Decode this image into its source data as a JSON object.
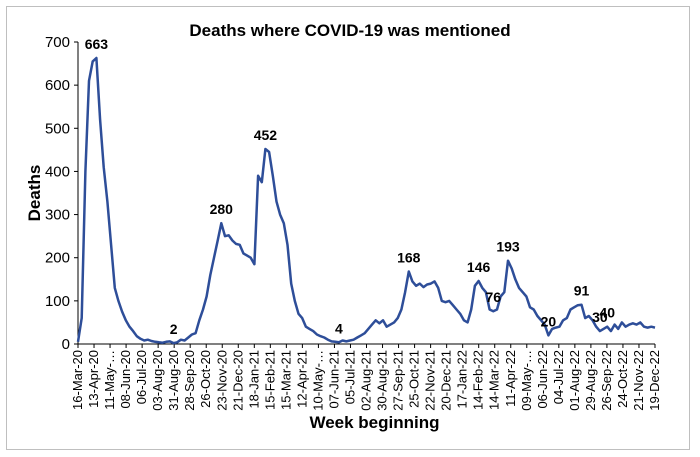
{
  "chart_data": {
    "type": "line",
    "title": "Deaths where COVID-19 was mentioned",
    "xlabel": "Week beginning",
    "ylabel": "Deaths",
    "ylim": [
      0,
      700
    ],
    "yticks": [
      0,
      100,
      200,
      300,
      400,
      500,
      600,
      700
    ],
    "grid": false,
    "line_color": "#2e4e99",
    "x_tick_labels": [
      "16-Mar-20",
      "13-Apr-20",
      "11-May-…",
      "08-Jun-20",
      "06-Jul-20",
      "03-Aug-20",
      "31-Aug-20",
      "28-Sep-20",
      "26-Oct-20",
      "23-Nov-20",
      "21-Dec-20",
      "18-Jan-21",
      "15-Feb-21",
      "15-Mar-21",
      "12-Apr-21",
      "10-May-…",
      "07-Jun-21",
      "05-Jul-21",
      "02-Aug-21",
      "30-Aug-21",
      "27-Sep-21",
      "25-Oct-21",
      "22-Nov-21",
      "20-Dec-21",
      "17-Jan-22",
      "14-Feb-22",
      "14-Mar-22",
      "11-Apr-22",
      "09-May-…",
      "06-Jun-22",
      "04-Jul-22",
      "01-Aug-22",
      "29-Aug-22",
      "26-Sep-22",
      "24-Oct-22",
      "21-Nov-22",
      "19-Dec-22"
    ],
    "series": [
      {
        "values": [
          5,
          60,
          400,
          610,
          655,
          663,
          520,
          410,
          330,
          230,
          130,
          100,
          75,
          55,
          40,
          30,
          18,
          12,
          8,
          10,
          7,
          5,
          4,
          3,
          5,
          6,
          2,
          4,
          10,
          8,
          15,
          22,
          25,
          55,
          80,
          110,
          160,
          200,
          240,
          280,
          250,
          252,
          240,
          232,
          230,
          210,
          205,
          200,
          185,
          390,
          375,
          452,
          445,
          390,
          330,
          300,
          280,
          230,
          140,
          100,
          70,
          60,
          40,
          35,
          30,
          22,
          18,
          15,
          10,
          6,
          5,
          4,
          8,
          6,
          8,
          10,
          15,
          20,
          25,
          35,
          45,
          55,
          48,
          55,
          40,
          45,
          50,
          60,
          80,
          120,
          168,
          145,
          135,
          140,
          132,
          138,
          140,
          145,
          130,
          100,
          97,
          100,
          90,
          80,
          70,
          55,
          50,
          80,
          135,
          146,
          130,
          120,
          80,
          76,
          80,
          110,
          120,
          193,
          175,
          150,
          130,
          120,
          110,
          85,
          80,
          65,
          55,
          45,
          20,
          35,
          38,
          40,
          55,
          60,
          80,
          85,
          90,
          91,
          60,
          65,
          55,
          40,
          30,
          35,
          40,
          30,
          45,
          35,
          50,
          40,
          45,
          48,
          45,
          50,
          40,
          38,
          40,
          38
        ]
      }
    ],
    "annotations": [
      {
        "text": "663",
        "value": 663
      },
      {
        "text": "2",
        "value": 2
      },
      {
        "text": "280",
        "value": 280
      },
      {
        "text": "452",
        "value": 452
      },
      {
        "text": "4",
        "value": 4
      },
      {
        "text": "168",
        "value": 168
      },
      {
        "text": "146",
        "value": 146
      },
      {
        "text": "76",
        "value": 76
      },
      {
        "text": "193",
        "value": 193
      },
      {
        "text": "20",
        "value": 20
      },
      {
        "text": "91",
        "value": 91
      },
      {
        "text": "30",
        "value": 30
      },
      {
        "text": "40",
        "value": 40
      }
    ]
  }
}
